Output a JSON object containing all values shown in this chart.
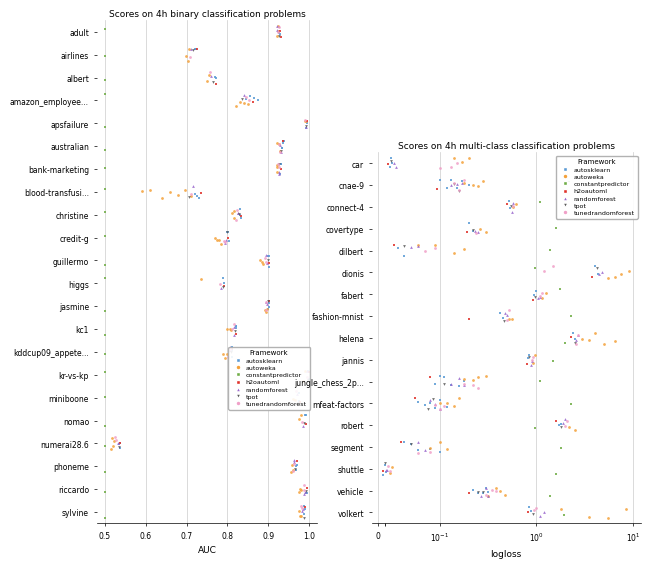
{
  "title_left": "Scores on 4h binary classification problems",
  "title_right": "Scores on 4h multi-class classification problems",
  "xlabel_left": "AUC",
  "xlabel_right": "logloss",
  "frameworks": [
    "autosklearn",
    "autoweka",
    "constantpredictor",
    "h2oautoml",
    "randomforest",
    "tpot",
    "tunedrandomforest"
  ],
  "framework_colors": {
    "autosklearn": "#5b9bd5",
    "autoweka": "#f4a13a",
    "constantpredictor": "#70ad47",
    "h2oautoml": "#e0312a",
    "randomforest": "#9966cc",
    "tpot": "#595959",
    "tunedrandomforest": "#f0a0c8"
  },
  "framework_markers": {
    "autosklearn": "s",
    "autoweka": "o",
    "constantpredictor": "s",
    "h2oautoml": "s",
    "randomforest": "^",
    "tpot": "v",
    "tunedrandomforest": "o"
  },
  "binary_datasets": [
    "adult",
    "airlines",
    "albert",
    "amazon_employee...",
    "apsfailure",
    "australian",
    "bank-marketing",
    "blood-transfusi...",
    "christine",
    "credit-g",
    "guillermo",
    "higgs",
    "jasmine",
    "kc1",
    "kddcup09_appete...",
    "kr-vs-kp",
    "miniboone",
    "nomao",
    "numerai28.6",
    "phoneme",
    "riccardo",
    "sylvine"
  ],
  "multiclass_datasets": [
    "car",
    "cnae-9",
    "connect-4",
    "covertype",
    "dilbert",
    "dionis",
    "fabert",
    "fashion-mnist",
    "helena",
    "jannis",
    "jungle_chess_2p...",
    "mfeat-factors",
    "robert",
    "segment",
    "shuttle",
    "vehicle",
    "volkert"
  ],
  "binary_data": {
    "adult": {
      "autosklearn": [
        0.927,
        0.927,
        0.928
      ],
      "autoweka": [
        0.922,
        0.923,
        0.924
      ],
      "constantpredictor": [
        0.5
      ],
      "h2oautoml": [
        0.929,
        0.93
      ],
      "randomforest": [
        0.921,
        0.922
      ],
      "tpot": [
        0.925
      ],
      "tunedrandomforest": [
        0.924,
        0.925
      ]
    },
    "airlines": {
      "autosklearn": [
        0.72,
        0.722
      ],
      "autoweka": [
        0.698,
        0.703,
        0.706
      ],
      "constantpredictor": [
        0.5
      ],
      "h2oautoml": [
        0.725
      ],
      "randomforest": [
        0.71
      ],
      "tpot": [
        0.715
      ],
      "tunedrandomforest": [
        0.708
      ]
    },
    "albert": {
      "autosklearn": [
        0.77,
        0.771
      ],
      "autoweka": [
        0.751,
        0.755
      ],
      "constantpredictor": [
        0.5
      ],
      "h2oautoml": [
        0.772
      ],
      "randomforest": [
        0.76
      ],
      "tpot": [
        0.765
      ],
      "tunedrandomforest": [
        0.758
      ]
    },
    "amazon_employee...": {
      "autosklearn": [
        0.845,
        0.855,
        0.865,
        0.875
      ],
      "autoweka": [
        0.82,
        0.83,
        0.84,
        0.85
      ],
      "constantpredictor": [
        0.5
      ],
      "h2oautoml": [
        0.862
      ],
      "randomforest": [
        0.84
      ],
      "tpot": [
        0.835
      ],
      "tunedrandomforest": [
        0.845,
        0.852
      ]
    },
    "apsfailure": {
      "autosklearn": [
        0.993,
        0.994
      ],
      "autoweka": [
        0.99,
        0.991
      ],
      "constantpredictor": [
        0.5
      ],
      "h2oautoml": [
        0.995
      ],
      "randomforest": [
        0.992
      ],
      "tpot": [
        0.991
      ],
      "tunedrandomforest": [
        0.99
      ]
    },
    "australian": {
      "autosklearn": [
        0.933,
        0.934,
        0.935,
        0.936,
        0.937
      ],
      "autoweka": [
        0.92,
        0.925,
        0.928
      ],
      "constantpredictor": [
        0.5
      ],
      "h2oautoml": [
        0.936
      ],
      "randomforest": [
        0.928,
        0.93
      ],
      "tpot": [
        0.93
      ],
      "tunedrandomforest": [
        0.927,
        0.929
      ]
    },
    "bank-marketing": {
      "autosklearn": [
        0.929,
        0.93,
        0.931
      ],
      "autoweka": [
        0.92,
        0.921,
        0.922
      ],
      "constantpredictor": [
        0.5
      ],
      "h2oautoml": [
        0.931
      ],
      "randomforest": [
        0.925,
        0.926
      ],
      "tpot": [
        0.926
      ],
      "tunedrandomforest": [
        0.924,
        0.925
      ]
    },
    "blood-transfusi...": {
      "autosklearn": [
        0.72,
        0.725,
        0.73
      ],
      "autoweka": [
        0.59,
        0.61,
        0.64,
        0.66,
        0.68,
        0.695,
        0.71
      ],
      "constantpredictor": [
        0.5
      ],
      "h2oautoml": [
        0.735
      ],
      "randomforest": [
        0.715
      ],
      "tpot": [
        0.705
      ],
      "tunedrandomforest": [
        0.71
      ]
    },
    "christine": {
      "autosklearn": [
        0.83,
        0.831,
        0.832
      ],
      "autoweka": [
        0.81,
        0.815,
        0.817
      ],
      "constantpredictor": [
        0.5
      ],
      "h2oautoml": [
        0.832
      ],
      "randomforest": [
        0.825,
        0.826
      ],
      "tpot": [
        0.828
      ],
      "tunedrandomforest": [
        0.822,
        0.824
      ]
    },
    "credit-g": {
      "autosklearn": [
        0.8,
        0.801,
        0.803
      ],
      "autoweka": [
        0.77,
        0.775,
        0.78,
        0.783
      ],
      "constantpredictor": [
        0.5
      ],
      "h2oautoml": [
        0.802
      ],
      "randomforest": [
        0.795,
        0.797
      ],
      "tpot": [
        0.798
      ],
      "tunedrandomforest": [
        0.792,
        0.795
      ]
    },
    "guillermo": {
      "autosklearn": [
        0.9,
        0.901,
        0.902
      ],
      "autoweka": [
        0.88,
        0.885,
        0.887
      ],
      "constantpredictor": [
        0.5
      ],
      "h2oautoml": [
        0.902
      ],
      "randomforest": [
        0.895,
        0.896
      ],
      "tpot": [
        0.898
      ],
      "tunedrandomforest": [
        0.892,
        0.894
      ]
    },
    "higgs": {
      "autosklearn": [
        0.79,
        0.791
      ],
      "autoweka": [
        0.735
      ],
      "constantpredictor": [
        0.5
      ],
      "h2oautoml": [
        0.792
      ],
      "randomforest": [
        0.785
      ],
      "tpot": [
        0.788
      ],
      "tunedrandomforest": [
        0.782
      ]
    },
    "jasmine": {
      "autosklearn": [
        0.9,
        0.901,
        0.902
      ],
      "autoweka": [
        0.892,
        0.895,
        0.896
      ],
      "constantpredictor": [
        0.5
      ],
      "h2oautoml": [
        0.902
      ],
      "randomforest": [
        0.895,
        0.896
      ],
      "tpot": [
        0.898
      ],
      "tunedrandomforest": [
        0.893,
        0.895
      ]
    },
    "kc1": {
      "autosklearn": [
        0.82,
        0.821,
        0.822
      ],
      "autoweka": [
        0.8,
        0.805,
        0.808
      ],
      "constantpredictor": [
        0.5
      ],
      "h2oautoml": [
        0.822
      ],
      "randomforest": [
        0.815,
        0.817
      ],
      "tpot": [
        0.818
      ],
      "tunedrandomforest": [
        0.812,
        0.815
      ]
    },
    "kddcup09_appete...": {
      "autosklearn": [
        0.81,
        0.811,
        0.812
      ],
      "autoweka": [
        0.79,
        0.795,
        0.798
      ],
      "constantpredictor": [
        0.5
      ],
      "h2oautoml": [
        0.812
      ],
      "randomforest": [
        0.805,
        0.807
      ],
      "tpot": [
        0.808
      ],
      "tunedrandomforest": [
        0.802,
        0.805
      ]
    },
    "kr-vs-kp": {
      "autosklearn": [
        0.998,
        0.999
      ],
      "autoweka": [
        0.985,
        0.99
      ],
      "constantpredictor": [
        0.5
      ],
      "h2oautoml": [
        0.999
      ],
      "randomforest": [
        0.995
      ],
      "tpot": [
        0.997
      ],
      "tunedrandomforest": [
        0.994
      ]
    },
    "miniboone": {
      "autosklearn": [
        0.975,
        0.976
      ],
      "autoweka": [
        0.96,
        0.965
      ],
      "constantpredictor": [
        0.5
      ],
      "h2oautoml": [
        0.977
      ],
      "randomforest": [
        0.97
      ],
      "tpot": [
        0.973
      ],
      "tunedrandomforest": [
        0.968
      ]
    },
    "nomao": {
      "autosklearn": [
        0.99,
        0.991
      ],
      "autoweka": [
        0.975,
        0.98
      ],
      "constantpredictor": [
        0.5
      ],
      "h2oautoml": [
        0.992
      ],
      "randomforest": [
        0.985
      ],
      "tpot": [
        0.988
      ],
      "tunedrandomforest": [
        0.982
      ]
    },
    "numerai28.6": {
      "autosklearn": [
        0.535,
        0.536,
        0.537
      ],
      "autoweka": [
        0.516,
        0.518,
        0.52,
        0.522
      ],
      "constantpredictor": [
        0.5
      ],
      "h2oautoml": [
        0.538
      ],
      "randomforest": [
        0.532
      ],
      "tpot": [
        0.534
      ],
      "tunedrandomforest": [
        0.526,
        0.528
      ]
    },
    "phoneme": {
      "autosklearn": [
        0.967,
        0.968,
        0.969
      ],
      "autoweka": [
        0.955,
        0.958,
        0.96
      ],
      "constantpredictor": [
        0.5
      ],
      "h2oautoml": [
        0.969
      ],
      "randomforest": [
        0.962,
        0.963
      ],
      "tpot": [
        0.965
      ],
      "tunedrandomforest": [
        0.96,
        0.962
      ]
    },
    "riccardo": {
      "autosklearn": [
        0.992,
        0.993,
        0.994
      ],
      "autoweka": [
        0.975,
        0.978,
        0.98
      ],
      "constantpredictor": [
        0.5
      ],
      "h2oautoml": [
        0.994
      ],
      "randomforest": [
        0.988,
        0.989
      ],
      "tpot": [
        0.991
      ],
      "tunedrandomforest": [
        0.986,
        0.988
      ]
    },
    "sylvine": {
      "autosklearn": [
        0.987,
        0.988,
        0.989
      ],
      "autoweka": [
        0.975,
        0.978,
        0.98
      ],
      "constantpredictor": [
        0.5
      ],
      "h2oautoml": [
        0.989
      ],
      "randomforest": [
        0.983,
        0.984
      ],
      "tpot": [
        0.986
      ],
      "tunedrandomforest": [
        0.981,
        0.983
      ]
    }
  },
  "multiclass_data": {
    "car": {
      "autosklearn": [
        0.018,
        0.02,
        0.022
      ],
      "autoweka": [
        0.14,
        0.17,
        0.2
      ],
      "constantpredictor": [
        1.79
      ],
      "h2oautoml": [
        0.015
      ],
      "randomforest": [
        0.025,
        0.028
      ],
      "tpot": [
        0.02
      ],
      "tunedrandomforest": [
        0.1,
        0.13,
        0.15
      ]
    },
    "cnae-9": {
      "autosklearn": [
        0.1,
        0.12,
        0.13,
        0.15,
        0.17,
        0.2
      ],
      "autoweka": [
        0.18,
        0.22,
        0.25,
        0.28
      ],
      "constantpredictor": [
        2.2
      ],
      "h2oautoml": [
        0.095
      ],
      "randomforest": [
        0.13,
        0.15,
        0.17
      ],
      "tpot": [
        0.14,
        0.16
      ],
      "tunedrandomforest": [
        0.14,
        0.16,
        0.18
      ]
    },
    "connect-4": {
      "autosklearn": [
        0.52,
        0.54
      ],
      "autoweka": [
        0.58,
        0.62
      ],
      "constantpredictor": [
        1.09
      ],
      "h2oautoml": [
        0.5
      ],
      "randomforest": [
        0.56,
        0.58
      ],
      "tpot": [
        0.55
      ],
      "tunedrandomforest": [
        0.57
      ]
    },
    "covertype": {
      "autosklearn": [
        0.2,
        0.22
      ],
      "autoweka": [
        0.26,
        0.3
      ],
      "constantpredictor": [
        1.61
      ],
      "h2oautoml": [
        0.19
      ],
      "randomforest": [
        0.23,
        0.25
      ],
      "tpot": [
        0.22
      ],
      "tunedrandomforest": [
        0.24
      ]
    },
    "dilbert": {
      "autosklearn": [
        0.03,
        0.04
      ],
      "autoweka": [
        0.06,
        0.09,
        0.14,
        0.18
      ],
      "constantpredictor": [
        1.39
      ],
      "h2oautoml": [
        0.025
      ],
      "randomforest": [
        0.05,
        0.06
      ],
      "tpot": [
        0.04
      ],
      "tunedrandomforest": [
        0.07,
        0.09
      ]
    },
    "dionis": {
      "autosklearn": [
        4.0,
        4.3
      ],
      "autoweka": [
        5.5,
        6.5,
        7.5,
        9.0
      ],
      "constantpredictor": [
        0.98
      ],
      "h2oautoml": [
        3.8
      ],
      "randomforest": [
        4.5,
        4.8
      ],
      "tpot": [
        4.2
      ],
      "tunedrandomforest": [
        1.2,
        1.5
      ]
    },
    "fabert": {
      "autosklearn": [
        0.95,
        1.0
      ],
      "autoweka": [
        1.15,
        1.25
      ],
      "constantpredictor": [
        1.75
      ],
      "h2oautoml": [
        0.92
      ],
      "randomforest": [
        1.05,
        1.1
      ],
      "tpot": [
        0.98
      ],
      "tunedrandomforest": [
        1.1,
        1.15
      ]
    },
    "fashion-mnist": {
      "autosklearn": [
        0.42,
        0.45
      ],
      "autoweka": [
        0.52,
        0.56
      ],
      "constantpredictor": [
        2.3
      ],
      "h2oautoml": [
        0.2
      ],
      "randomforest": [
        0.48,
        0.5
      ],
      "tpot": [
        0.46
      ],
      "tunedrandomforest": [
        0.5,
        0.52
      ]
    },
    "helena": {
      "autosklearn": [
        2.4,
        2.5
      ],
      "autoweka": [
        3.0,
        3.5,
        4.0,
        5.0,
        6.5
      ],
      "constantpredictor": [
        2.0
      ],
      "h2oautoml": [
        2.3
      ],
      "randomforest": [
        2.6,
        2.7
      ],
      "tpot": [
        2.5
      ],
      "tunedrandomforest": [
        2.6,
        2.7
      ]
    },
    "jannis": {
      "autosklearn": [
        0.82,
        0.85
      ],
      "autoweka": [
        0.92,
        0.96
      ],
      "constantpredictor": [
        1.5
      ],
      "h2oautoml": [
        0.8
      ],
      "randomforest": [
        0.88,
        0.9
      ],
      "tpot": [
        0.85
      ],
      "tunedrandomforest": [
        0.9,
        0.92
      ]
    },
    "jungle_chess_2p...": {
      "autosklearn": [
        0.09,
        0.1,
        0.11,
        0.13,
        0.16,
        0.18
      ],
      "autoweka": [
        0.18,
        0.22,
        0.25,
        0.3
      ],
      "constantpredictor": [
        1.1
      ],
      "h2oautoml": [
        0.08
      ],
      "randomforest": [
        0.13,
        0.16,
        0.18
      ],
      "tpot": [
        0.11
      ],
      "tunedrandomforest": [
        0.18,
        0.22,
        0.25
      ]
    },
    "mfeat-factors": {
      "autosklearn": [
        0.06,
        0.07,
        0.08,
        0.09,
        0.1,
        0.12
      ],
      "autoweka": [
        0.1,
        0.12,
        0.14,
        0.16
      ],
      "constantpredictor": [
        2.3
      ],
      "h2oautoml": [
        0.055
      ],
      "randomforest": [
        0.08,
        0.09,
        0.1
      ],
      "tpot": [
        0.075,
        0.085
      ],
      "tunedrandomforest": [
        0.09,
        0.1,
        0.11
      ]
    },
    "robert": {
      "autosklearn": [
        1.7,
        1.8
      ],
      "autoweka": [
        2.2,
        2.5
      ],
      "constantpredictor": [
        0.98
      ],
      "h2oautoml": [
        1.6
      ],
      "randomforest": [
        1.9,
        2.0
      ],
      "tpot": [
        1.8
      ],
      "tunedrandomforest": [
        2.0,
        2.1
      ]
    },
    "segment": {
      "autosklearn": [
        0.04,
        0.05,
        0.06,
        0.08,
        0.1
      ],
      "autoweka": [
        0.08,
        0.1,
        0.12
      ],
      "constantpredictor": [
        1.8
      ],
      "h2oautoml": [
        0.035
      ],
      "randomforest": [
        0.06,
        0.07
      ],
      "tpot": [
        0.05
      ],
      "tunedrandomforest": [
        0.06,
        0.08
      ]
    },
    "shuttle": {
      "autosklearn": [
        0.008,
        0.01,
        0.012
      ],
      "autoweka": [
        0.018,
        0.022
      ],
      "constantpredictor": [
        1.61
      ],
      "h2oautoml": [
        0.007
      ],
      "randomforest": [
        0.012,
        0.014
      ],
      "tpot": [
        0.01
      ],
      "tunedrandomforest": [
        0.015,
        0.018
      ]
    },
    "vehicle": {
      "autosklearn": [
        0.22,
        0.25,
        0.28,
        0.3,
        0.32
      ],
      "autoweka": [
        0.32,
        0.38,
        0.42,
        0.48
      ],
      "constantpredictor": [
        1.39
      ],
      "h2oautoml": [
        0.2
      ],
      "randomforest": [
        0.27,
        0.3,
        0.32
      ],
      "tpot": [
        0.25,
        0.28
      ],
      "tunedrandomforest": [
        0.3,
        0.35,
        0.38
      ]
    },
    "volkert": {
      "autosklearn": [
        0.85,
        0.88
      ],
      "autoweka": [
        1.8,
        3.5,
        5.5,
        8.5
      ],
      "constantpredictor": [
        1.95
      ],
      "h2oautoml": [
        0.82
      ],
      "randomforest": [
        1.1,
        1.2
      ],
      "tpot": [
        0.92
      ],
      "tunedrandomforest": [
        0.95,
        1.0
      ]
    }
  }
}
